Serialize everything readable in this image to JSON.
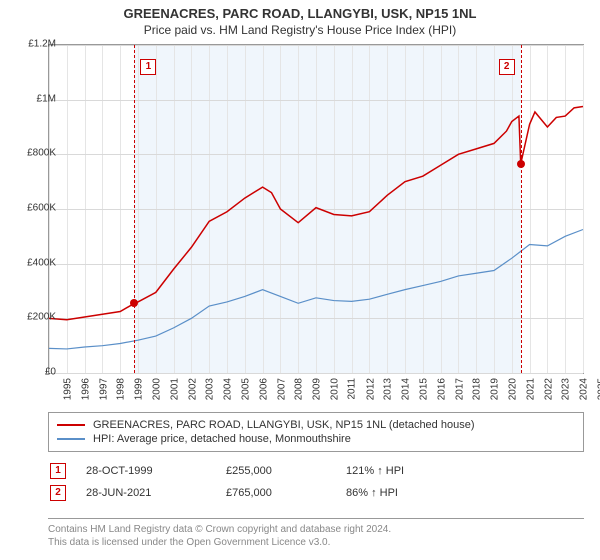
{
  "title": "GREENACRES, PARC ROAD, LLANGYBI, USK, NP15 1NL",
  "subtitle": "Price paid vs. HM Land Registry's House Price Index (HPI)",
  "chart": {
    "type": "line",
    "background_color": "#ffffff",
    "grid_color": "#d9d9d9",
    "border_color": "#999999",
    "band_color": "#f0f6fc",
    "x_min": 1995,
    "x_max": 2025,
    "y_min": 0,
    "y_max": 1200000,
    "y_ticks": [
      0,
      200000,
      400000,
      600000,
      800000,
      1000000,
      1200000
    ],
    "y_tick_labels": [
      "£0",
      "£200K",
      "£400K",
      "£600K",
      "£800K",
      "£1M",
      "£1.2M"
    ],
    "x_ticks": [
      1995,
      1996,
      1997,
      1998,
      1999,
      2000,
      2001,
      2002,
      2003,
      2004,
      2005,
      2006,
      2007,
      2008,
      2009,
      2010,
      2011,
      2012,
      2013,
      2014,
      2015,
      2016,
      2017,
      2018,
      2019,
      2020,
      2021,
      2022,
      2023,
      2024,
      2025
    ],
    "band_start": 1999.8,
    "band_end": 2021.5,
    "series": [
      {
        "name": "GREENACRES, PARC ROAD, LLANGYBI, USK, NP15 1NL (detached house)",
        "color": "#cc0000",
        "line_width": 1.5,
        "data": [
          [
            1995,
            200000
          ],
          [
            1996,
            195000
          ],
          [
            1997,
            205000
          ],
          [
            1998,
            215000
          ],
          [
            1999,
            225000
          ],
          [
            1999.8,
            255000
          ],
          [
            2000,
            260000
          ],
          [
            2001,
            295000
          ],
          [
            2002,
            380000
          ],
          [
            2003,
            460000
          ],
          [
            2004,
            555000
          ],
          [
            2005,
            590000
          ],
          [
            2006,
            640000
          ],
          [
            2007,
            680000
          ],
          [
            2007.5,
            660000
          ],
          [
            2008,
            600000
          ],
          [
            2009,
            550000
          ],
          [
            2010,
            605000
          ],
          [
            2011,
            580000
          ],
          [
            2012,
            575000
          ],
          [
            2013,
            590000
          ],
          [
            2014,
            650000
          ],
          [
            2015,
            700000
          ],
          [
            2016,
            720000
          ],
          [
            2017,
            760000
          ],
          [
            2018,
            800000
          ],
          [
            2019,
            820000
          ],
          [
            2020,
            840000
          ],
          [
            2020.7,
            885000
          ],
          [
            2021,
            920000
          ],
          [
            2021.4,
            940000
          ],
          [
            2021.5,
            765000
          ],
          [
            2022,
            910000
          ],
          [
            2022.3,
            955000
          ],
          [
            2023,
            900000
          ],
          [
            2023.5,
            935000
          ],
          [
            2024,
            940000
          ],
          [
            2024.5,
            970000
          ],
          [
            2025,
            975000
          ]
        ]
      },
      {
        "name": "HPI: Average price, detached house, Monmouthshire",
        "color": "#5a8fc8",
        "line_width": 1.2,
        "data": [
          [
            1995,
            90000
          ],
          [
            1996,
            88000
          ],
          [
            1997,
            95000
          ],
          [
            1998,
            100000
          ],
          [
            1999,
            108000
          ],
          [
            2000,
            120000
          ],
          [
            2001,
            135000
          ],
          [
            2002,
            165000
          ],
          [
            2003,
            200000
          ],
          [
            2004,
            245000
          ],
          [
            2005,
            260000
          ],
          [
            2006,
            280000
          ],
          [
            2007,
            305000
          ],
          [
            2008,
            280000
          ],
          [
            2009,
            255000
          ],
          [
            2010,
            275000
          ],
          [
            2011,
            265000
          ],
          [
            2012,
            262000
          ],
          [
            2013,
            270000
          ],
          [
            2014,
            288000
          ],
          [
            2015,
            305000
          ],
          [
            2016,
            320000
          ],
          [
            2017,
            335000
          ],
          [
            2018,
            355000
          ],
          [
            2019,
            365000
          ],
          [
            2020,
            375000
          ],
          [
            2021,
            420000
          ],
          [
            2022,
            470000
          ],
          [
            2023,
            465000
          ],
          [
            2024,
            500000
          ],
          [
            2025,
            525000
          ]
        ]
      }
    ],
    "markers": [
      {
        "num": "1",
        "x": 1999.8,
        "y": 255000,
        "dot_color": "#cc0000"
      },
      {
        "num": "2",
        "x": 2021.5,
        "y": 765000,
        "dot_color": "#cc0000"
      }
    ]
  },
  "legend": {
    "items": [
      {
        "color": "#cc0000",
        "label": "GREENACRES, PARC ROAD, LLANGYBI, USK, NP15 1NL (detached house)"
      },
      {
        "color": "#5a8fc8",
        "label": "HPI: Average price, detached house, Monmouthshire"
      }
    ]
  },
  "events": [
    {
      "num": "1",
      "date": "28-OCT-1999",
      "price": "£255,000",
      "pct": "121% ↑ HPI"
    },
    {
      "num": "2",
      "date": "28-JUN-2021",
      "price": "£765,000",
      "pct": "86% ↑ HPI"
    }
  ],
  "footer": {
    "line1": "Contains HM Land Registry data © Crown copyright and database right 2024.",
    "line2": "This data is licensed under the Open Government Licence v3.0."
  }
}
